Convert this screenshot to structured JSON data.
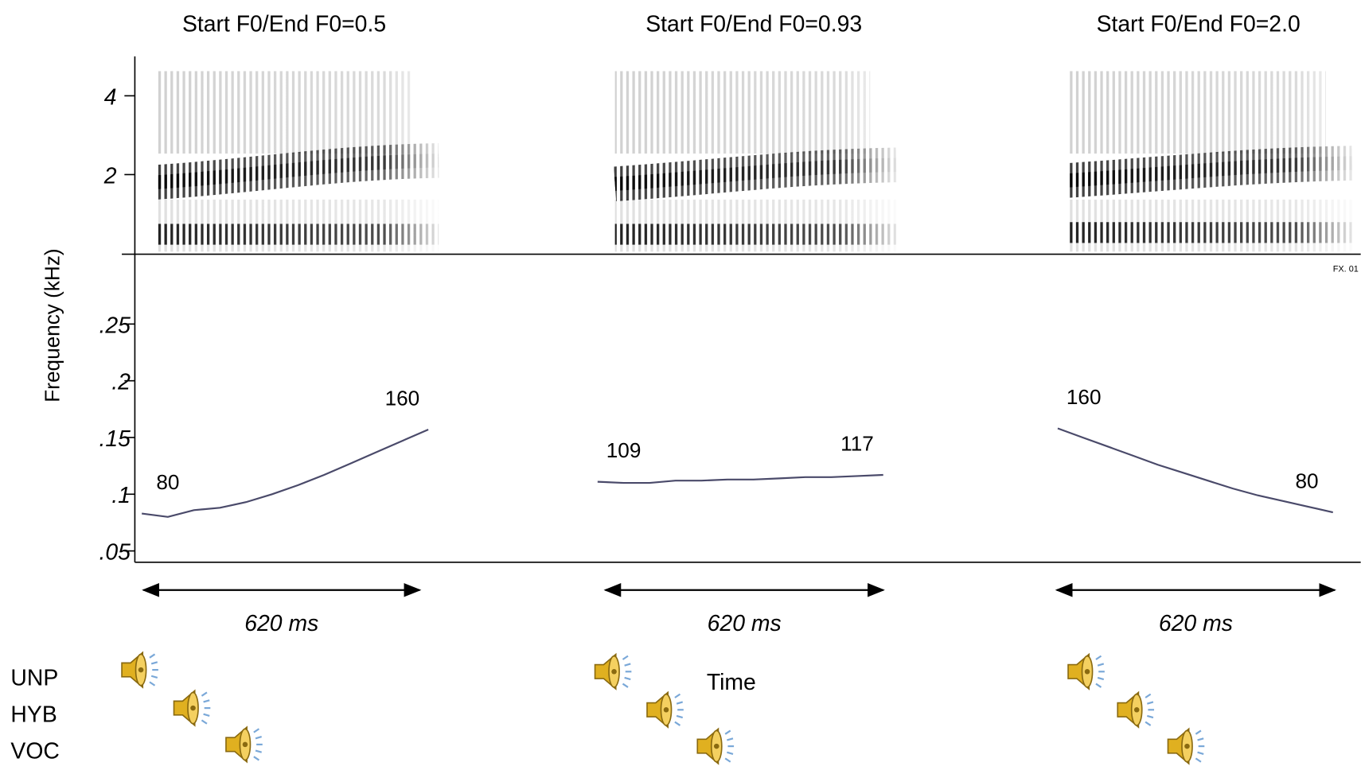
{
  "chart_data": {
    "type": "line",
    "y_label": "Frequency (kHz)",
    "x_label": "Time",
    "stamp": "FX. 01",
    "y2lim": [
      0,
      5
    ],
    "y2ticks": [
      2,
      4
    ],
    "ylim": [
      0.04,
      0.31
    ],
    "yticks": [
      {
        "value": 0.05,
        "label": ".05"
      },
      {
        "value": 0.1,
        "label": ".1"
      },
      {
        "value": 0.15,
        "label": ".15"
      },
      {
        "value": 0.2,
        "label": ".2"
      },
      {
        "value": 0.25,
        "label": ".25"
      }
    ],
    "color": "#4a4a6a",
    "audio_labels": [
      "UNP",
      "HYB",
      "VOC"
    ],
    "panels": [
      {
        "title": "Start F0/End F0=0.5",
        "start_label": "80",
        "end_label": "160",
        "duration": "620 ms",
        "values": [
          0.083,
          0.08,
          0.086,
          0.088,
          0.093,
          0.1,
          0.108,
          0.117,
          0.127,
          0.137,
          0.147,
          0.157
        ]
      },
      {
        "title": "Start F0/End F0=0.93",
        "start_label": "109",
        "end_label": "117",
        "duration": "620 ms",
        "values": [
          0.111,
          0.11,
          0.11,
          0.112,
          0.112,
          0.113,
          0.113,
          0.114,
          0.115,
          0.115,
          0.116,
          0.117
        ]
      },
      {
        "title": "Start F0/End F0=2.0",
        "start_label": "160",
        "end_label": "80",
        "duration": "620 ms",
        "values": [
          0.158,
          0.15,
          0.142,
          0.134,
          0.126,
          0.119,
          0.112,
          0.105,
          0.099,
          0.094,
          0.089,
          0.084
        ]
      }
    ]
  }
}
